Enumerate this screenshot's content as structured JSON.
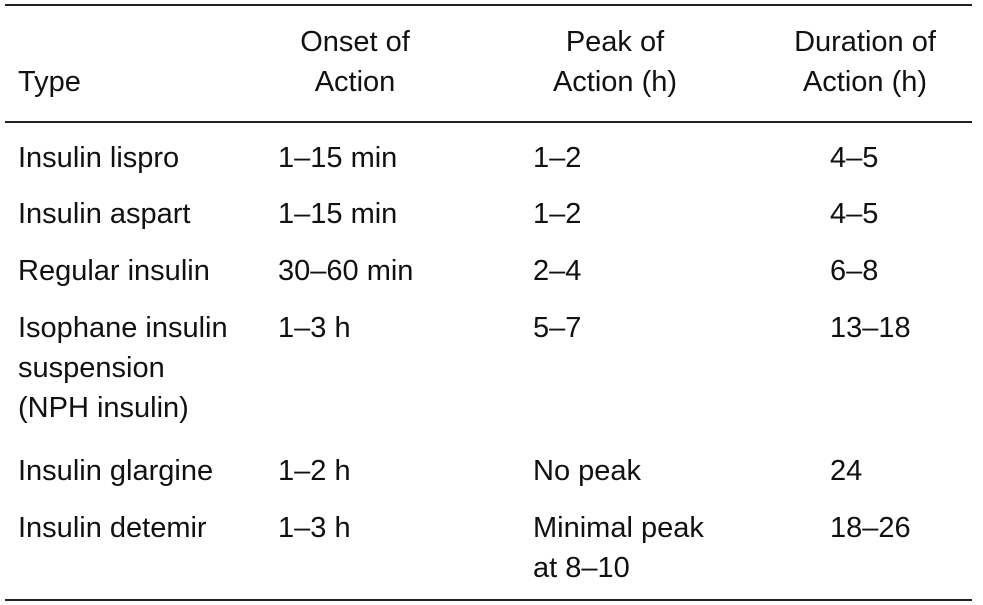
{
  "table": {
    "headers": [
      "Type",
      "Onset of\nAction",
      "Peak of\nAction (h)",
      "Duration of\nAction (h)"
    ],
    "rows": [
      [
        "Insulin lispro",
        "1–15 min",
        "1–2",
        "4–5"
      ],
      [
        "Insulin aspart",
        "1–15 min",
        "1–2",
        "4–5"
      ],
      [
        "Regular insulin",
        "30–60 min",
        "2–4",
        "6–8"
      ],
      [
        "Isophane insulin\nsuspension\n(NPH insulin)",
        "1–3 h",
        "5–7",
        "13–18"
      ],
      [
        "Insulin glargine",
        "1–2 h",
        "No peak",
        "24"
      ],
      [
        "Insulin detemir",
        "1–3 h",
        "Minimal peak\nat 8–10",
        "18–26"
      ]
    ]
  }
}
